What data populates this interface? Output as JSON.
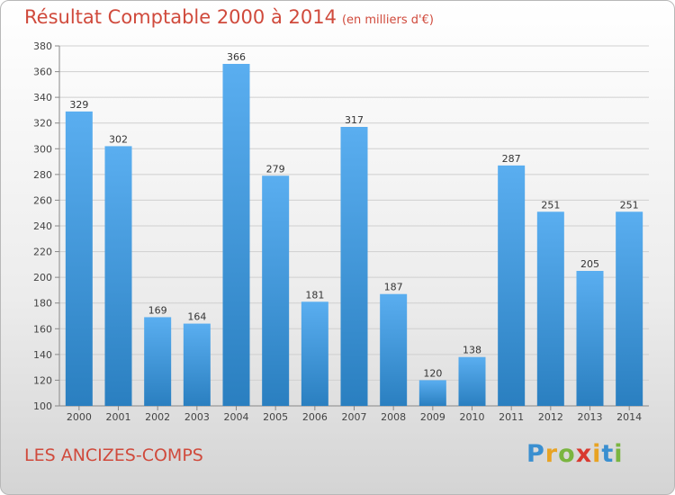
{
  "title": "Résultat Comptable 2000 à 2014",
  "subtitle": "(en milliers d'€)",
  "place": "LES ANCIZES-COMPS",
  "logo": {
    "letters": [
      "P",
      "r",
      "o",
      "x",
      "i",
      "t",
      "i"
    ],
    "colors": [
      "#3a8fd0",
      "#e8a323",
      "#7ab540",
      "#d9392f",
      "#e8a323",
      "#3a8fd0",
      "#7ab540"
    ]
  },
  "colors": {
    "bar_light": "#5aaef0",
    "bar_dark": "#2a7fc0",
    "title": "#d04a3c"
  },
  "chart_data": {
    "type": "bar",
    "title": "Résultat Comptable 2000 à 2014",
    "subtitle": "(en milliers d'€)",
    "categories": [
      "2000",
      "2001",
      "2002",
      "2003",
      "2004",
      "2005",
      "2006",
      "2007",
      "2008",
      "2009",
      "2010",
      "2011",
      "2012",
      "2013",
      "2014"
    ],
    "values": [
      329,
      302,
      169,
      164,
      366,
      279,
      181,
      317,
      187,
      120,
      138,
      287,
      251,
      205,
      251
    ],
    "ylim": [
      100,
      380
    ],
    "yticks": [
      100,
      120,
      140,
      160,
      180,
      200,
      220,
      240,
      260,
      280,
      300,
      320,
      340,
      360,
      380
    ],
    "grid": true
  }
}
